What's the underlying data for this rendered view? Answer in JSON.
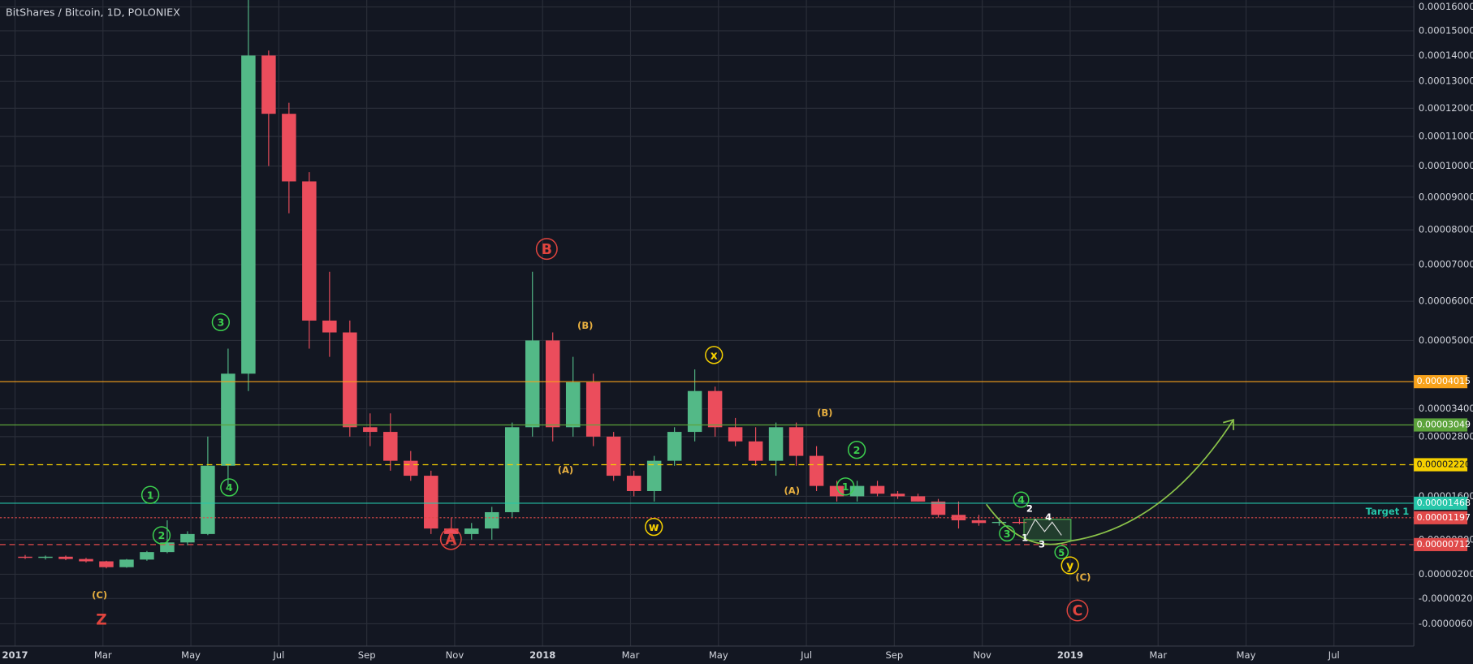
{
  "chart_data": {
    "type": "candlestick",
    "title": "BitShares / Bitcoin, 1D, POLONIEX",
    "log_scale": true,
    "grid": true,
    "up_color": "#53b987",
    "down_color": "#eb4d5c",
    "ylim": [
      -9.4e-06,
      0.000163
    ],
    "yticks": [
      {
        "value": 0.00016,
        "label": "0.00016000"
      },
      {
        "value": 0.00015,
        "label": "0.00015000"
      },
      {
        "value": 0.00014,
        "label": "0.00014000"
      },
      {
        "value": 0.00013,
        "label": "0.00013000"
      },
      {
        "value": 0.00012,
        "label": "0.00012000"
      },
      {
        "value": 0.00011,
        "label": "0.00011000"
      },
      {
        "value": 0.0001,
        "label": "0.00010000"
      },
      {
        "value": 9e-05,
        "label": "0.00009000"
      },
      {
        "value": 8e-05,
        "label": "0.00008000"
      },
      {
        "value": 7e-05,
        "label": "0.00007000"
      },
      {
        "value": 6e-05,
        "label": "0.00006000"
      },
      {
        "value": 5e-05,
        "label": "0.00005000"
      },
      {
        "value": 3.4e-05,
        "label": "0.00003400"
      },
      {
        "value": 2.8e-05,
        "label": "0.00002800"
      },
      {
        "value": 1.6e-05,
        "label": "0.00001600"
      },
      {
        "value": 8e-06,
        "label": "0.00000800"
      },
      {
        "value": 2e-06,
        "label": "0.00000200"
      },
      {
        "value": -2e-06,
        "label": "-0.00000200"
      },
      {
        "value": -6e-06,
        "label": "-0.00000600"
      }
    ],
    "categories": [
      "2017",
      "Mar",
      "May",
      "Jul",
      "Sep",
      "Nov",
      "2018",
      "Mar",
      "May",
      "Jul",
      "Sep",
      "Nov",
      "2019",
      "Mar",
      "May",
      "Jul"
    ],
    "ohlc": [
      [
        5e-06,
        5.3e-06,
        4.6e-06,
        4.8e-06
      ],
      [
        4.8e-06,
        5.2e-06,
        4.5e-06,
        5e-06
      ],
      [
        5e-06,
        5.2e-06,
        4.4e-06,
        4.6e-06
      ],
      [
        4.6e-06,
        4.8e-06,
        4e-06,
        4.2e-06
      ],
      [
        4.2e-06,
        4.3e-06,
        3e-06,
        3.2e-06
      ],
      [
        3.2e-06,
        4.6e-06,
        3.1e-06,
        4.5e-06
      ],
      [
        4.5e-06,
        6e-06,
        4.3e-06,
        5.8e-06
      ],
      [
        5.8e-06,
        1.15e-05,
        5.6e-06,
        7.5e-06
      ],
      [
        7.5e-06,
        9.5e-06,
        7e-06,
        9e-06
      ],
      [
        9e-06,
        2.8e-05,
        8.8e-06,
        2.2e-05
      ],
      [
        2.2e-05,
        4.8e-05,
        1.8e-05,
        4.2e-05
      ],
      [
        4.2e-05,
        0.000165,
        3.8e-05,
        0.00014
      ],
      [
        0.00014,
        0.000142,
        0.0001,
        0.000118
      ],
      [
        0.000118,
        0.000122,
        8.5e-05,
        9.5e-05
      ],
      [
        9.5e-05,
        9.8e-05,
        4.8e-05,
        5.5e-05
      ],
      [
        5.5e-05,
        6.8e-05,
        4.6e-05,
        5.2e-05
      ],
      [
        5.2e-05,
        5.5e-05,
        2.8e-05,
        3e-05
      ],
      [
        3e-05,
        3.3e-05,
        2.6e-05,
        2.9e-05
      ],
      [
        2.9e-05,
        3.3e-05,
        2.1e-05,
        2.3e-05
      ],
      [
        2.3e-05,
        2.5e-05,
        1.9e-05,
        2e-05
      ],
      [
        2e-05,
        2.1e-05,
        9e-06,
        1e-05
      ],
      [
        1e-05,
        1.2e-05,
        8e-06,
        9e-06
      ],
      [
        9e-06,
        1.1e-05,
        8e-06,
        1e-05
      ],
      [
        1e-05,
        1.4e-05,
        8e-06,
        1.3e-05
      ],
      [
        1.3e-05,
        3.1e-05,
        1.2e-05,
        3e-05
      ],
      [
        3e-05,
        6.8e-05,
        2.8e-05,
        5e-05
      ],
      [
        5e-05,
        5.2e-05,
        2.7e-05,
        3e-05
      ],
      [
        3e-05,
        4.6e-05,
        2.8e-05,
        4e-05
      ],
      [
        4e-05,
        4.2e-05,
        2.6e-05,
        2.8e-05
      ],
      [
        2.8e-05,
        2.9e-05,
        1.9e-05,
        2e-05
      ],
      [
        2e-05,
        2.1e-05,
        1.6e-05,
        1.7e-05
      ],
      [
        1.7e-05,
        2.4e-05,
        1.5e-05,
        2.3e-05
      ],
      [
        2.3e-05,
        3e-05,
        2.2e-05,
        2.9e-05
      ],
      [
        2.9e-05,
        4.3e-05,
        2.7e-05,
        3.8e-05
      ],
      [
        3.8e-05,
        3.9e-05,
        2.8e-05,
        3e-05
      ],
      [
        3e-05,
        3.2e-05,
        2.6e-05,
        2.7e-05
      ],
      [
        2.7e-05,
        3e-05,
        2.2e-05,
        2.3e-05
      ],
      [
        2.3e-05,
        3.1e-05,
        2e-05,
        3e-05
      ],
      [
        3e-05,
        3.1e-05,
        2.2e-05,
        2.4e-05
      ],
      [
        2.4e-05,
        2.6e-05,
        1.7e-05,
        1.8e-05
      ],
      [
        1.8e-05,
        1.9e-05,
        1.5e-05,
        1.6e-05
      ],
      [
        1.6e-05,
        1.9e-05,
        1.5e-05,
        1.8e-05
      ],
      [
        1.8e-05,
        1.9e-05,
        1.6e-05,
        1.65e-05
      ],
      [
        1.65e-05,
        1.7e-05,
        1.55e-05,
        1.6e-05
      ],
      [
        1.6e-05,
        1.65e-05,
        1.5e-05,
        1.5e-05
      ],
      [
        1.5e-05,
        1.55e-05,
        1.2e-05,
        1.25e-05
      ],
      [
        1.25e-05,
        1.5e-05,
        1e-05,
        1.15e-05
      ],
      [
        1.15e-05,
        1.25e-05,
        1.05e-05,
        1.1e-05
      ],
      [
        1.1e-05,
        1.2e-05,
        1.05e-05,
        1.12e-05
      ],
      [
        1.12e-05,
        1.18e-05,
        1.08e-05,
        1.1e-05
      ]
    ],
    "price_lines": [
      {
        "value": 4.015e-05,
        "label": "0.00004015",
        "color": "#f7a21b",
        "style": "solid"
      },
      {
        "value": 3.049e-05,
        "label": "0.00003049",
        "color": "#5ca33b",
        "style": "solid"
      },
      {
        "value": 2.22e-05,
        "label": "0.00002220",
        "color": "#f5d000",
        "style": "dashed"
      },
      {
        "value": 1.468e-05,
        "label": "0.00001468",
        "color": "#26c6a9",
        "style": "solid"
      },
      {
        "value": 1.197e-05,
        "label": "0.00001197",
        "color": "#e04a4a",
        "style": "dotted"
      },
      {
        "value": 7.12e-06,
        "label": "0.00000712",
        "color": "#e04a4a",
        "style": "dashed"
      }
    ],
    "annotations": [
      {
        "text": "Z",
        "color": "#e0443e"
      },
      {
        "text": "(C)",
        "color": "#e8b040"
      },
      {
        "text": "1",
        "color": "#3ccf4e"
      },
      {
        "text": "2",
        "color": "#3ccf4e"
      },
      {
        "text": "3",
        "color": "#3ccf4e"
      },
      {
        "text": "4",
        "color": "#3ccf4e"
      },
      {
        "text": "A",
        "color": "#e0443e"
      },
      {
        "text": "B",
        "color": "#e0443e"
      },
      {
        "text": "(B)",
        "color": "#e8b040"
      },
      {
        "text": "(A)",
        "color": "#e8b040"
      },
      {
        "text": "w",
        "color": "#f5d000"
      },
      {
        "text": "x",
        "color": "#f5d000"
      },
      {
        "text": "(B)",
        "color": "#e8b040"
      },
      {
        "text": "(A)",
        "color": "#e8b040"
      },
      {
        "text": "1",
        "color": "#3ccf4e"
      },
      {
        "text": "2",
        "color": "#3ccf4e"
      },
      {
        "text": "3",
        "color": "#3ccf4e"
      },
      {
        "text": "4",
        "color": "#3ccf4e"
      },
      {
        "text": "5",
        "color": "#3ccf4e"
      },
      {
        "text": "y",
        "color": "#f5d000"
      },
      {
        "text": "(C)",
        "color": "#e8b040"
      },
      {
        "text": "C",
        "color": "#e0443e"
      },
      {
        "text": "1",
        "color": "#ffffff"
      },
      {
        "text": "2",
        "color": "#ffffff"
      },
      {
        "text": "3",
        "color": "#ffffff"
      },
      {
        "text": "4",
        "color": "#ffffff"
      },
      {
        "text": "Target 1",
        "color": "#26c6a9"
      }
    ]
  }
}
